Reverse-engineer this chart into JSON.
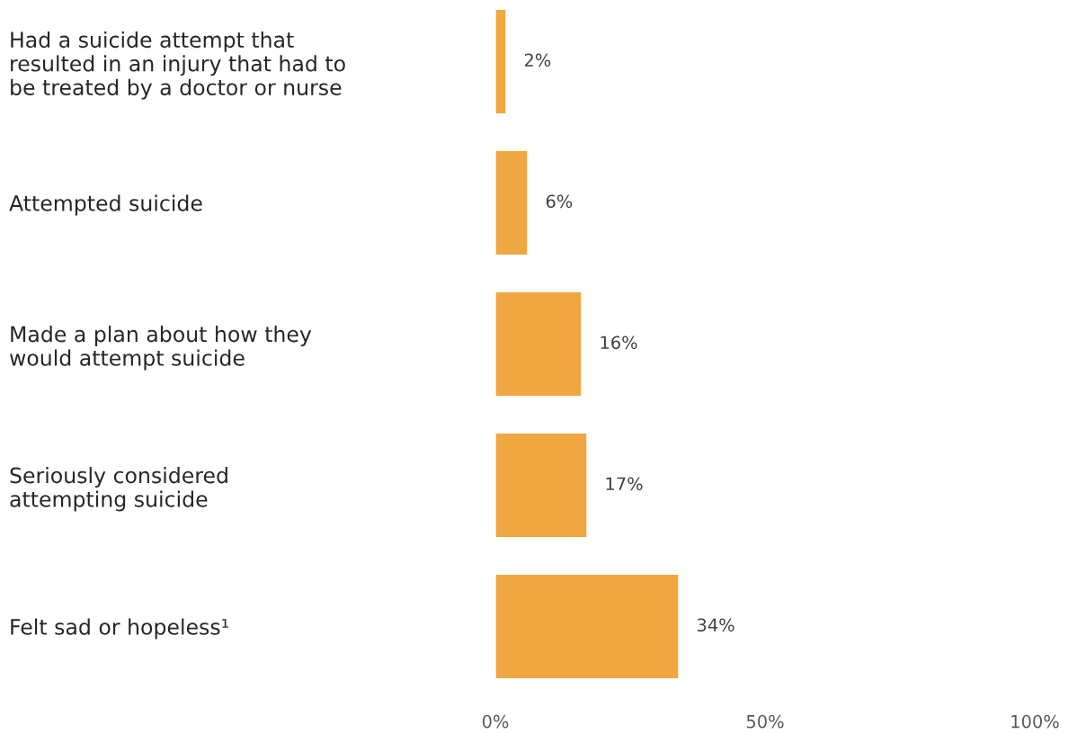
{
  "chart_data": {
    "type": "bar",
    "orientation": "horizontal",
    "categories": [
      "Had a suicide attempt that\nresulted in an injury that had to\nbe treated by a doctor or nurse",
      "Attempted suicide",
      "Made a plan about how they\nwould attempt suicide",
      "Seriously considered\nattempting suicide",
      "Felt sad or hopeless¹"
    ],
    "values": [
      2,
      6,
      16,
      17,
      34
    ],
    "value_labels": [
      "2%",
      "6%",
      "16%",
      "17%",
      "34%"
    ],
    "color": "#f0a742",
    "xlim": [
      0,
      100
    ],
    "xticks": [
      {
        "value": 0,
        "label": "0%"
      },
      {
        "value": 50,
        "label": "50%"
      },
      {
        "value": 100,
        "label": "100%"
      }
    ],
    "grid": false,
    "legend": false
  }
}
